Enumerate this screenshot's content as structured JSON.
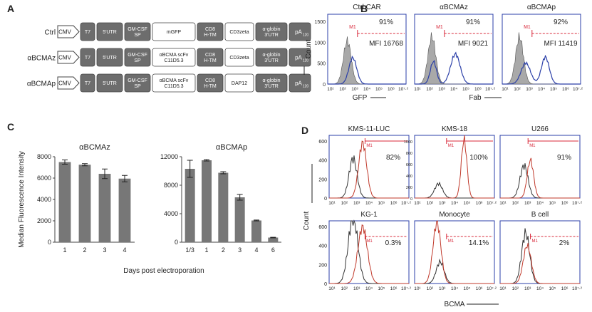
{
  "panel_letters": [
    "A",
    "B",
    "C",
    "D"
  ],
  "constructs": [
    {
      "label": "Ctrl CAR",
      "promoter": "CMV",
      "elements": [
        "T7",
        "5'UTR",
        "GM-CSF SP",
        "mGFP",
        "CD8 H-TM",
        "CD3zeta",
        "α-globin 3'UTR",
        "pA120"
      ]
    },
    {
      "label": "αBCMAz CAR",
      "promoter": "CMV",
      "elements": [
        "T7",
        "5'UTR",
        "GM-CSF SP",
        "αBCMA scFv C11D5.3",
        "CD8 H-TM",
        "CD3zeta",
        "α-globin 3'UTR",
        "pA120"
      ]
    },
    {
      "label": "αBCMAp CAR",
      "promoter": "CMV",
      "elements": [
        "T7",
        "5'UTR",
        "GM-CSF SP",
        "αBCMA scFv C11D5.3",
        "CD8 H-TM",
        "DAP12",
        "α-globin 3'UTR",
        "pA120"
      ]
    }
  ],
  "flow_B": {
    "ylabel": "Count",
    "xlabels": [
      "GFP",
      "Fab"
    ],
    "gate": "M1",
    "panels": [
      {
        "title": "Ctrl CAR",
        "percent": "91%",
        "mfi": "MFI 16768"
      },
      {
        "title": "αBCMAz",
        "percent": "91%",
        "mfi": "MFI 9021"
      },
      {
        "title": "αBCMAp",
        "percent": "92%",
        "mfi": "MFI 11419"
      }
    ],
    "yticks": [
      "0",
      "500",
      "1000",
      "1500"
    ],
    "xticks": [
      "10¹",
      "10²",
      "10³",
      "10⁴",
      "10⁵",
      "10⁶",
      "10⁷·²"
    ]
  },
  "chart_data": [
    {
      "type": "bar",
      "title": "αBCMAz",
      "categories": [
        "1",
        "2",
        "3",
        "4"
      ],
      "values": [
        7500,
        7250,
        6400,
        5950
      ],
      "errors": [
        200,
        100,
        450,
        300
      ],
      "ylabel": "Median Fluorescence Intensity",
      "xlabel": "Days post electroporation",
      "ylim": [
        0,
        8000
      ],
      "yticks": [
        0,
        2000,
        4000,
        6000,
        8000
      ]
    },
    {
      "type": "bar",
      "title": "αBCMAp",
      "categories": [
        "1/3",
        "1",
        "2",
        "3",
        "4",
        "6"
      ],
      "values": [
        10300,
        11500,
        9750,
        6300,
        3050,
        650
      ],
      "errors": [
        1200,
        100,
        150,
        400,
        60,
        40
      ],
      "ylim": [
        0,
        12000
      ],
      "yticks": [
        0,
        4000,
        8000,
        12000
      ]
    }
  ],
  "flow_D": {
    "ylabel": "Count",
    "xlabel": "BCMA",
    "gate": "M1",
    "panels": [
      {
        "title": "KMS-11-LUC",
        "percent": "82%",
        "yticks": [
          "0",
          "200",
          "400",
          "600"
        ]
      },
      {
        "title": "KMS-18",
        "percent": "100%",
        "yticks": [
          "0",
          "200",
          "400",
          "600",
          "800",
          "1000"
        ]
      },
      {
        "title": "U266",
        "percent": "91%",
        "yticks": [
          "0",
          "200",
          "400",
          "600"
        ]
      },
      {
        "title": "KG-1",
        "percent": "0.3%",
        "yticks": [
          "0",
          "200",
          "400",
          "600"
        ]
      },
      {
        "title": "Monocyte",
        "percent": "14.1%",
        "yticks": [
          "0",
          "200",
          "400",
          "600"
        ]
      },
      {
        "title": "B cell",
        "percent": "2%",
        "yticks": [
          "0",
          "200",
          "400",
          "600"
        ]
      }
    ],
    "xticks": [
      "10¹",
      "10²",
      "10³",
      "10⁴",
      "10⁵",
      "10⁶",
      "10⁷·²"
    ]
  },
  "colors": {
    "block": "#6d6d6d",
    "block_text": "#ffffff",
    "hist_blue": "#2b3fa8",
    "gate_red": "#d8283a",
    "hist_red": "#c0392b",
    "bar": "#777777",
    "filled": "#a9a9a9"
  }
}
